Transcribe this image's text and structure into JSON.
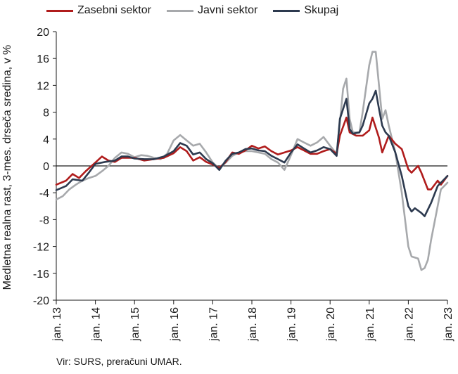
{
  "chart_data": {
    "type": "line",
    "title": "",
    "xlabel": "",
    "ylabel": "Medletna realna rast, 3-mes. drseča sredina, v %",
    "ylim": [
      -20,
      20
    ],
    "yticks": [
      20,
      16,
      12,
      8,
      4,
      0,
      -4,
      -8,
      -12,
      -16,
      -20
    ],
    "xlim": [
      "2013-01",
      "2023-01"
    ],
    "xticks": [
      {
        "date": "2013-01",
        "label": "jan. 13"
      },
      {
        "date": "2014-01",
        "label": "jan. 14"
      },
      {
        "date": "2015-01",
        "label": "jan. 15"
      },
      {
        "date": "2016-01",
        "label": "jan. 16"
      },
      {
        "date": "2017-01",
        "label": "jan. 17"
      },
      {
        "date": "2018-01",
        "label": "jan. 18"
      },
      {
        "date": "2019-01",
        "label": "jan. 19"
      },
      {
        "date": "2020-01",
        "label": "jan. 20"
      },
      {
        "date": "2021-01",
        "label": "jan. 21"
      },
      {
        "date": "2022-01",
        "label": "jan. 22"
      },
      {
        "date": "2023-01",
        "label": "jan. 23"
      }
    ],
    "grid": false,
    "legend": "top",
    "source": "Vir: SURS, preračuni UMAR.",
    "series": [
      {
        "name": "Zasebni sektor",
        "color": "#b01c1c",
        "points": [
          [
            "2013-01",
            -2.8
          ],
          [
            "2013-04",
            -2.2
          ],
          [
            "2013-06",
            -1.2
          ],
          [
            "2013-08",
            -1.8
          ],
          [
            "2013-10",
            -0.8
          ],
          [
            "2014-01",
            0.5
          ],
          [
            "2014-03",
            1.4
          ],
          [
            "2014-05",
            0.8
          ],
          [
            "2014-07",
            0.6
          ],
          [
            "2014-09",
            1.2
          ],
          [
            "2015-01",
            1.2
          ],
          [
            "2015-04",
            0.8
          ],
          [
            "2015-07",
            1.0
          ],
          [
            "2015-10",
            1.2
          ],
          [
            "2016-01",
            1.9
          ],
          [
            "2016-03",
            2.8
          ],
          [
            "2016-05",
            2.2
          ],
          [
            "2016-07",
            0.8
          ],
          [
            "2016-09",
            1.3
          ],
          [
            "2016-11",
            0.6
          ],
          [
            "2017-01",
            0.2
          ],
          [
            "2017-03",
            -0.3
          ],
          [
            "2017-05",
            0.6
          ],
          [
            "2017-07",
            2.0
          ],
          [
            "2017-09",
            1.8
          ],
          [
            "2017-11",
            2.3
          ],
          [
            "2018-01",
            3.0
          ],
          [
            "2018-03",
            2.6
          ],
          [
            "2018-05",
            2.9
          ],
          [
            "2018-07",
            2.2
          ],
          [
            "2018-09",
            1.7
          ],
          [
            "2018-11",
            2.0
          ],
          [
            "2019-01",
            2.3
          ],
          [
            "2019-03",
            2.8
          ],
          [
            "2019-05",
            2.3
          ],
          [
            "2019-07",
            1.8
          ],
          [
            "2019-09",
            1.8
          ],
          [
            "2019-11",
            2.2
          ],
          [
            "2020-01",
            2.5
          ],
          [
            "2020-03",
            1.8
          ],
          [
            "2020-04",
            4.5
          ],
          [
            "2020-06",
            7.2
          ],
          [
            "2020-07",
            5.0
          ],
          [
            "2020-09",
            4.5
          ],
          [
            "2020-11",
            4.5
          ],
          [
            "2021-01",
            5.3
          ],
          [
            "2021-02",
            7.2
          ],
          [
            "2021-04",
            4.2
          ],
          [
            "2021-05",
            2.0
          ],
          [
            "2021-07",
            4.5
          ],
          [
            "2021-09",
            3.3
          ],
          [
            "2021-11",
            2.5
          ],
          [
            "2022-01",
            -0.5
          ],
          [
            "2022-02",
            -1.0
          ],
          [
            "2022-04",
            0.0
          ],
          [
            "2022-05",
            -1.0
          ],
          [
            "2022-07",
            -3.5
          ],
          [
            "2022-08",
            -3.5
          ],
          [
            "2022-10",
            -2.2
          ],
          [
            "2022-11",
            -2.8
          ],
          [
            "2023-01",
            -1.5
          ]
        ]
      },
      {
        "name": "Javni sektor",
        "color": "#a7a9ac",
        "points": [
          [
            "2013-01",
            -5.0
          ],
          [
            "2013-03",
            -4.5
          ],
          [
            "2013-05",
            -3.5
          ],
          [
            "2013-07",
            -2.8
          ],
          [
            "2013-09",
            -2.2
          ],
          [
            "2013-11",
            -1.8
          ],
          [
            "2014-01",
            -1.5
          ],
          [
            "2014-03",
            -0.8
          ],
          [
            "2014-05",
            0.0
          ],
          [
            "2014-07",
            1.2
          ],
          [
            "2014-09",
            2.0
          ],
          [
            "2014-11",
            1.8
          ],
          [
            "2015-01",
            1.3
          ],
          [
            "2015-03",
            1.6
          ],
          [
            "2015-05",
            1.5
          ],
          [
            "2015-07",
            1.2
          ],
          [
            "2015-09",
            1.0
          ],
          [
            "2015-11",
            1.8
          ],
          [
            "2016-01",
            3.8
          ],
          [
            "2016-03",
            4.6
          ],
          [
            "2016-05",
            3.8
          ],
          [
            "2016-07",
            3.0
          ],
          [
            "2016-09",
            3.3
          ],
          [
            "2016-11",
            2.0
          ],
          [
            "2017-01",
            0.5
          ],
          [
            "2017-03",
            -0.4
          ],
          [
            "2017-05",
            0.5
          ],
          [
            "2017-07",
            1.5
          ],
          [
            "2017-09",
            2.0
          ],
          [
            "2017-11",
            2.2
          ],
          [
            "2018-01",
            2.2
          ],
          [
            "2018-03",
            2.0
          ],
          [
            "2018-05",
            1.8
          ],
          [
            "2018-07",
            1.0
          ],
          [
            "2018-09",
            0.5
          ],
          [
            "2018-11",
            -0.6
          ],
          [
            "2019-01",
            1.6
          ],
          [
            "2019-03",
            4.0
          ],
          [
            "2019-05",
            3.5
          ],
          [
            "2019-07",
            3.0
          ],
          [
            "2019-09",
            3.5
          ],
          [
            "2019-11",
            4.3
          ],
          [
            "2020-01",
            3.0
          ],
          [
            "2020-03",
            1.8
          ],
          [
            "2020-04",
            6.5
          ],
          [
            "2020-05",
            11.5
          ],
          [
            "2020-06",
            13.0
          ],
          [
            "2020-07",
            7.0
          ],
          [
            "2020-08",
            5.0
          ],
          [
            "2020-10",
            5.0
          ],
          [
            "2020-11",
            8.0
          ],
          [
            "2021-01",
            15.0
          ],
          [
            "2021-02",
            17.0
          ],
          [
            "2021-03",
            17.0
          ],
          [
            "2021-04",
            12.0
          ],
          [
            "2021-05",
            7.0
          ],
          [
            "2021-06",
            8.3
          ],
          [
            "2021-07",
            6.0
          ],
          [
            "2021-09",
            2.0
          ],
          [
            "2021-11",
            -4.0
          ],
          [
            "2022-01",
            -12.0
          ],
          [
            "2022-02",
            -13.5
          ],
          [
            "2022-04",
            -13.8
          ],
          [
            "2022-05",
            -15.5
          ],
          [
            "2022-06",
            -15.2
          ],
          [
            "2022-07",
            -14.0
          ],
          [
            "2022-08",
            -11.0
          ],
          [
            "2022-10",
            -6.0
          ],
          [
            "2022-11",
            -3.5
          ],
          [
            "2023-01",
            -2.5
          ]
        ]
      },
      {
        "name": "Skupaj",
        "color": "#2d3a4f",
        "points": [
          [
            "2013-01",
            -3.6
          ],
          [
            "2013-04",
            -3.0
          ],
          [
            "2013-06",
            -2.0
          ],
          [
            "2013-09",
            -2.2
          ],
          [
            "2013-11",
            -1.0
          ],
          [
            "2014-01",
            0.3
          ],
          [
            "2014-04",
            0.6
          ],
          [
            "2014-07",
            0.8
          ],
          [
            "2014-09",
            1.4
          ],
          [
            "2014-11",
            1.4
          ],
          [
            "2015-01",
            1.1
          ],
          [
            "2015-04",
            1.0
          ],
          [
            "2015-07",
            1.0
          ],
          [
            "2015-10",
            1.4
          ],
          [
            "2016-01",
            2.2
          ],
          [
            "2016-03",
            3.4
          ],
          [
            "2016-05",
            3.0
          ],
          [
            "2016-07",
            1.7
          ],
          [
            "2016-09",
            2.0
          ],
          [
            "2016-11",
            1.0
          ],
          [
            "2017-01",
            0.4
          ],
          [
            "2017-03",
            -0.6
          ],
          [
            "2017-05",
            0.8
          ],
          [
            "2017-07",
            1.8
          ],
          [
            "2017-09",
            2.0
          ],
          [
            "2017-11",
            2.5
          ],
          [
            "2018-01",
            2.6
          ],
          [
            "2018-03",
            2.3
          ],
          [
            "2018-05",
            2.2
          ],
          [
            "2018-07",
            1.5
          ],
          [
            "2018-09",
            1.0
          ],
          [
            "2018-11",
            0.5
          ],
          [
            "2019-01",
            2.0
          ],
          [
            "2019-03",
            3.2
          ],
          [
            "2019-05",
            2.6
          ],
          [
            "2019-07",
            2.0
          ],
          [
            "2019-09",
            2.3
          ],
          [
            "2019-11",
            2.8
          ],
          [
            "2020-01",
            2.5
          ],
          [
            "2020-03",
            1.5
          ],
          [
            "2020-04",
            7.0
          ],
          [
            "2020-06",
            10.0
          ],
          [
            "2020-07",
            5.5
          ],
          [
            "2020-08",
            4.8
          ],
          [
            "2020-10",
            5.0
          ],
          [
            "2020-11",
            6.0
          ],
          [
            "2021-01",
            9.3
          ],
          [
            "2021-02",
            10.0
          ],
          [
            "2021-03",
            11.2
          ],
          [
            "2021-04",
            8.5
          ],
          [
            "2021-05",
            6.0
          ],
          [
            "2021-06",
            5.0
          ],
          [
            "2021-07",
            4.5
          ],
          [
            "2021-09",
            2.0
          ],
          [
            "2021-11",
            -1.5
          ],
          [
            "2022-01",
            -6.0
          ],
          [
            "2022-02",
            -6.8
          ],
          [
            "2022-03",
            -6.3
          ],
          [
            "2022-05",
            -7.0
          ],
          [
            "2022-06",
            -7.5
          ],
          [
            "2022-08",
            -5.5
          ],
          [
            "2022-10",
            -3.0
          ],
          [
            "2022-11",
            -2.5
          ],
          [
            "2023-01",
            -1.5
          ]
        ]
      }
    ]
  }
}
